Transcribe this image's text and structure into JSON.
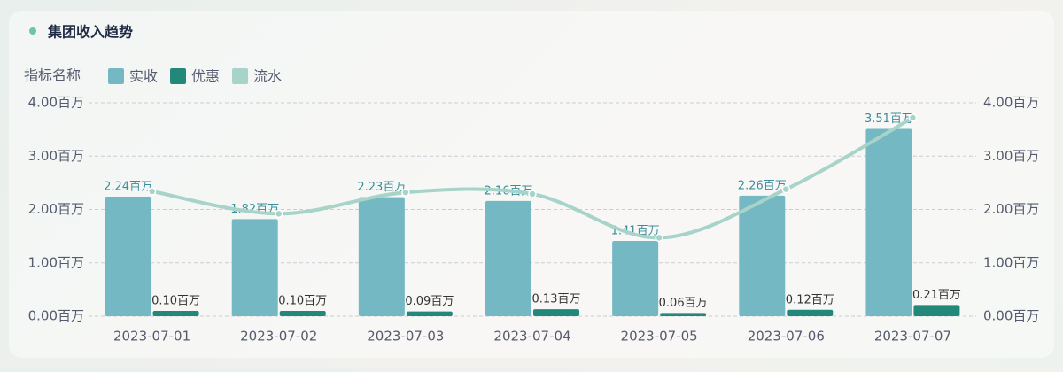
{
  "chart_data": {
    "type": "bar",
    "title": "集团收入趋势",
    "legend_title": "指标名称",
    "categories": [
      "2023-07-01",
      "2023-07-02",
      "2023-07-03",
      "2023-07-04",
      "2023-07-05",
      "2023-07-06",
      "2023-07-07"
    ],
    "series": [
      {
        "name": "实收",
        "type": "bar",
        "color": "#74b8c4",
        "values": [
          2.24,
          1.82,
          2.23,
          2.16,
          1.41,
          2.26,
          3.51
        ],
        "value_labels": [
          "2.24百万",
          "1.82百万",
          "2.23百万",
          "2.16百万",
          "1.41百万",
          "2.26百万",
          "3.51百万"
        ]
      },
      {
        "name": "优惠",
        "type": "bar",
        "color": "#22887a",
        "values": [
          0.1,
          0.1,
          0.09,
          0.13,
          0.06,
          0.12,
          0.21
        ],
        "value_labels": [
          "0.10百万",
          "0.10百万",
          "0.09百万",
          "0.13百万",
          "0.06百万",
          "0.12百万",
          "0.21百万"
        ]
      },
      {
        "name": "流水",
        "type": "line",
        "axis": "y2",
        "color": "#a8d3c9",
        "values": [
          2.34,
          1.92,
          2.32,
          2.29,
          1.47,
          2.38,
          3.72
        ]
      }
    ],
    "ylim": [
      0,
      4
    ],
    "yticks": [
      {
        "value": 0,
        "label": "0.00百万"
      },
      {
        "value": 1,
        "label": "1.00百万"
      },
      {
        "value": 2,
        "label": "2.00百万"
      },
      {
        "value": 3,
        "label": "3.00百万"
      },
      {
        "value": 4,
        "label": "4.00百万"
      }
    ],
    "y2lim": [
      0,
      4
    ],
    "y2ticks": [
      {
        "value": 0,
        "label": "0.00百万"
      },
      {
        "value": 1,
        "label": "1.00百万"
      },
      {
        "value": 2,
        "label": "2.00百万"
      },
      {
        "value": 3,
        "label": "3.00百万"
      },
      {
        "value": 4,
        "label": "4.00百万"
      }
    ],
    "grid": true
  }
}
